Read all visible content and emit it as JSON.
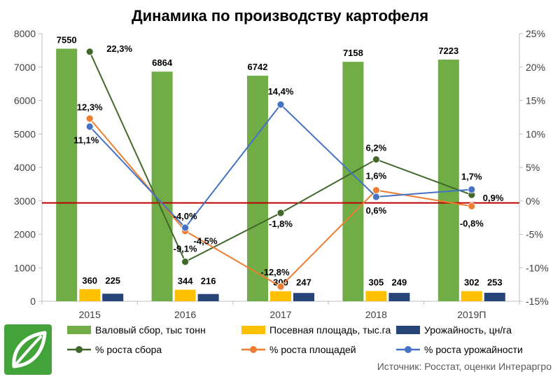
{
  "title": "Динамика по производству картофеля",
  "source": "Источник: Росстат, оценки Интераргро",
  "chart_data": {
    "type": "bar",
    "categories": [
      "2015",
      "2016",
      "2017",
      "2018",
      "2019П"
    ],
    "y_left": {
      "min": 0,
      "max": 8000,
      "ticks": [
        "0",
        "1000",
        "2000",
        "3000",
        "4000",
        "5000",
        "6000",
        "7000",
        "8000"
      ],
      "tick_values": [
        0,
        1000,
        2000,
        3000,
        4000,
        5000,
        6000,
        7000,
        8000
      ]
    },
    "y_right": {
      "min": -15,
      "max": 25,
      "ticks": [
        "-15%",
        "-10%",
        "-5%",
        "0%",
        "5%",
        "10%",
        "15%",
        "20%",
        "25%"
      ],
      "tick_values": [
        -15,
        -10,
        -5,
        0,
        5,
        10,
        15,
        20,
        25
      ]
    },
    "bar_series": [
      {
        "name": "Валовый сбор, тыс тонн",
        "color": "#70ad47",
        "values": [
          7550,
          6864,
          6742,
          7158,
          7223
        ],
        "labels": [
          "7550",
          "6864",
          "6742",
          "7158",
          "7223"
        ]
      },
      {
        "name": "Посевная площадь, тыс.га",
        "color": "#ffc000",
        "values": [
          360,
          344,
          300,
          305,
          302
        ],
        "labels": [
          "360",
          "344",
          "300",
          "305",
          "302"
        ]
      },
      {
        "name": "Урожайность, цн/га",
        "color": "#264478",
        "values": [
          225,
          216,
          247,
          249,
          253
        ],
        "labels": [
          "225",
          "216",
          "247",
          "249",
          "253"
        ]
      }
    ],
    "line_series": [
      {
        "name": "% роста сбора",
        "color": "#43682b",
        "values": [
          22.3,
          -9.1,
          -1.8,
          6.2,
          0.9
        ],
        "labels": [
          "22,3%",
          "-9,1%",
          "-1,8%",
          "6,2%",
          "0,9%"
        ]
      },
      {
        "name": "% роста площадей",
        "color": "#ed7d31",
        "values": [
          12.3,
          -4.5,
          -12.8,
          1.6,
          -0.8
        ],
        "labels": [
          "12,3%",
          "-4,5%",
          "-12,8%",
          "1,6%",
          "-0,8%"
        ]
      },
      {
        "name": "% роста урожайности",
        "color": "#4472c4",
        "values": [
          11.1,
          -4.0,
          14.4,
          0.6,
          1.7
        ],
        "labels": [
          "11,1%",
          "-4,0%",
          "14,4%",
          "0,6%",
          "1,7%"
        ]
      }
    ],
    "reference_line": {
      "value": 2940,
      "color": "#c00000"
    },
    "grid": false,
    "legend_position": "bottom"
  }
}
